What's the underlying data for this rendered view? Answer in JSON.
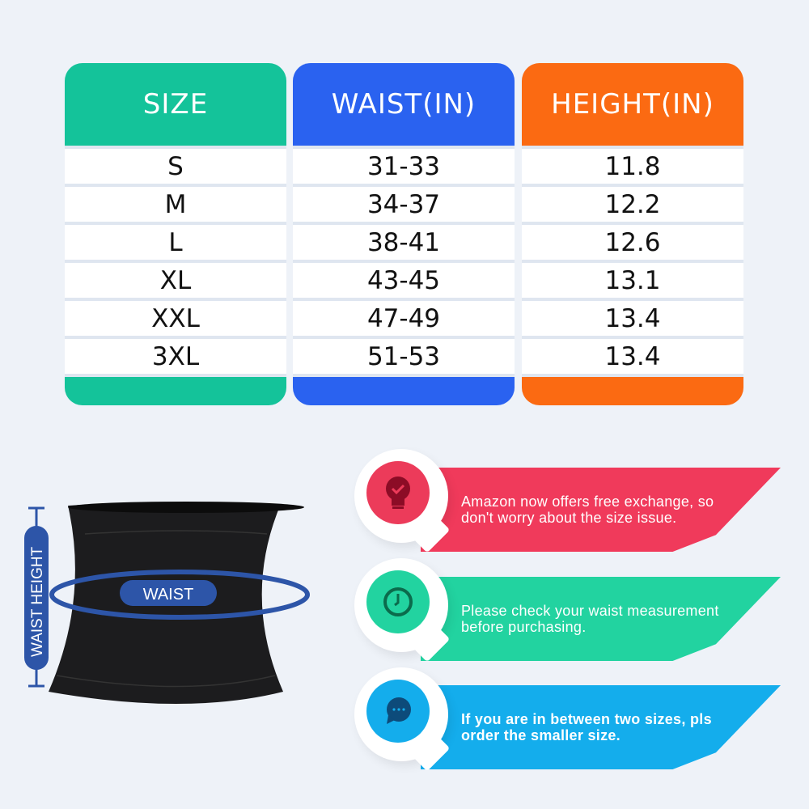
{
  "table": {
    "columns": [
      {
        "header": "SIZE",
        "color": "#14c39a",
        "values": [
          "S",
          "M",
          "L",
          "XL",
          "XXL",
          "3XL"
        ]
      },
      {
        "header": "WAIST(IN)",
        "color": "#2a62f0",
        "values": [
          "31-33",
          "34-37",
          "38-41",
          "43-45",
          "47-49",
          "51-53"
        ]
      },
      {
        "header": "HEIGHT(IN)",
        "color": "#fb6a12",
        "values": [
          "11.8",
          "12.2",
          "12.6",
          "13.1",
          "13.4",
          "13.4"
        ]
      }
    ]
  },
  "diagram": {
    "waist_label": "WAIST",
    "height_label": "WAIST HEIGHT",
    "accent": "#2d55a8"
  },
  "tips": [
    {
      "text": "Amazon now offers free exchange, so don't worry about the size issue.",
      "color": "#f03a5b",
      "icon": "lightbulb-check-icon"
    },
    {
      "text": "Please check your waist measurement before purchasing.",
      "color": "#22d3a0",
      "icon": "clock-icon"
    },
    {
      "text": "If you are in between two sizes, pls order the smaller size.",
      "color": "#14adec",
      "icon": "chat-bubble-icon"
    }
  ]
}
